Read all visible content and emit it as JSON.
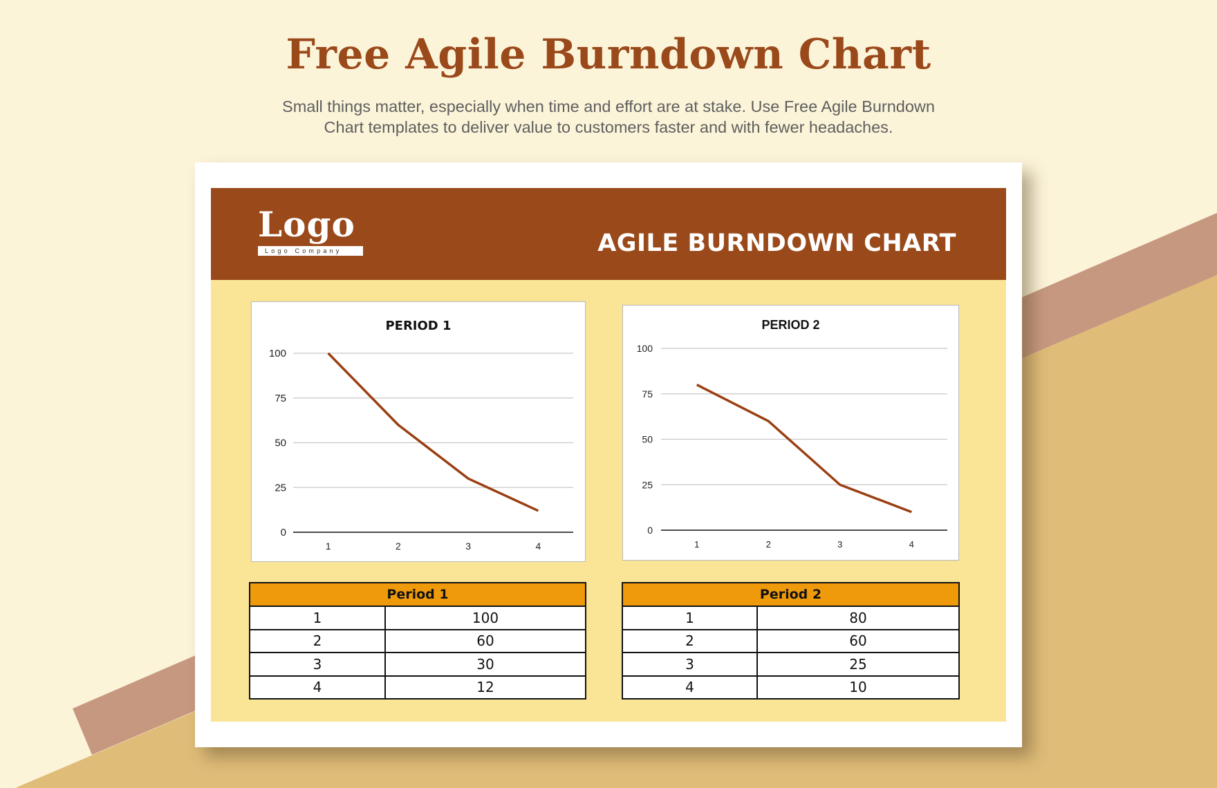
{
  "page": {
    "title": "Free Agile Burndown Chart",
    "subtitle_line1": "Small things matter, especially when time and effort are at stake. Use Free Agile Burndown",
    "subtitle_line2": "Chart templates to deliver value to customers faster and with fewer headaches."
  },
  "colors": {
    "background": "#FCF4D9",
    "band": "#C79880",
    "lower_fill": "#DFBC78",
    "title": "#9A491B",
    "header_band": "#9A4A1A",
    "content_bg": "#FAE596",
    "table_header": "#EE9A0A",
    "line": "#9A3F12",
    "grid": "#C8C8C8"
  },
  "template": {
    "logo_word": "Logo",
    "logo_tagline": "Logo Company",
    "header_title": "AGILE BURNDOWN CHART"
  },
  "charts": [
    {
      "title": "PERIOD 1",
      "y_ticks": [
        "100",
        "75",
        "50",
        "25",
        "0"
      ],
      "x_ticks": [
        "1",
        "2",
        "3",
        "4"
      ]
    },
    {
      "title": "PERIOD 2",
      "y_ticks": [
        "100",
        "75",
        "50",
        "25",
        "0"
      ],
      "x_ticks": [
        "1",
        "2",
        "3",
        "4"
      ]
    }
  ],
  "tables": [
    {
      "header": "Period 1",
      "rows": [
        {
          "period": "1",
          "value": "100"
        },
        {
          "period": "2",
          "value": "60"
        },
        {
          "period": "3",
          "value": "30"
        },
        {
          "period": "4",
          "value": "12"
        }
      ]
    },
    {
      "header": "Period 2",
      "rows": [
        {
          "period": "1",
          "value": "80"
        },
        {
          "period": "2",
          "value": "60"
        },
        {
          "period": "3",
          "value": "25"
        },
        {
          "period": "4",
          "value": "10"
        }
      ]
    }
  ],
  "chart_data": [
    {
      "type": "line",
      "title": "PERIOD 1",
      "categories": [
        "1",
        "2",
        "3",
        "4"
      ],
      "values": [
        100,
        60,
        30,
        12
      ],
      "xlabel": "",
      "ylabel": "",
      "ylim": [
        0,
        100
      ],
      "y_ticks": [
        0,
        25,
        50,
        75,
        100
      ],
      "grid": true,
      "legend": "none"
    },
    {
      "type": "line",
      "title": "PERIOD 2",
      "categories": [
        "1",
        "2",
        "3",
        "4"
      ],
      "values": [
        80,
        60,
        25,
        10
      ],
      "xlabel": "",
      "ylabel": "",
      "ylim": [
        0,
        100
      ],
      "y_ticks": [
        0,
        25,
        50,
        75,
        100
      ],
      "grid": true,
      "legend": "none"
    }
  ]
}
